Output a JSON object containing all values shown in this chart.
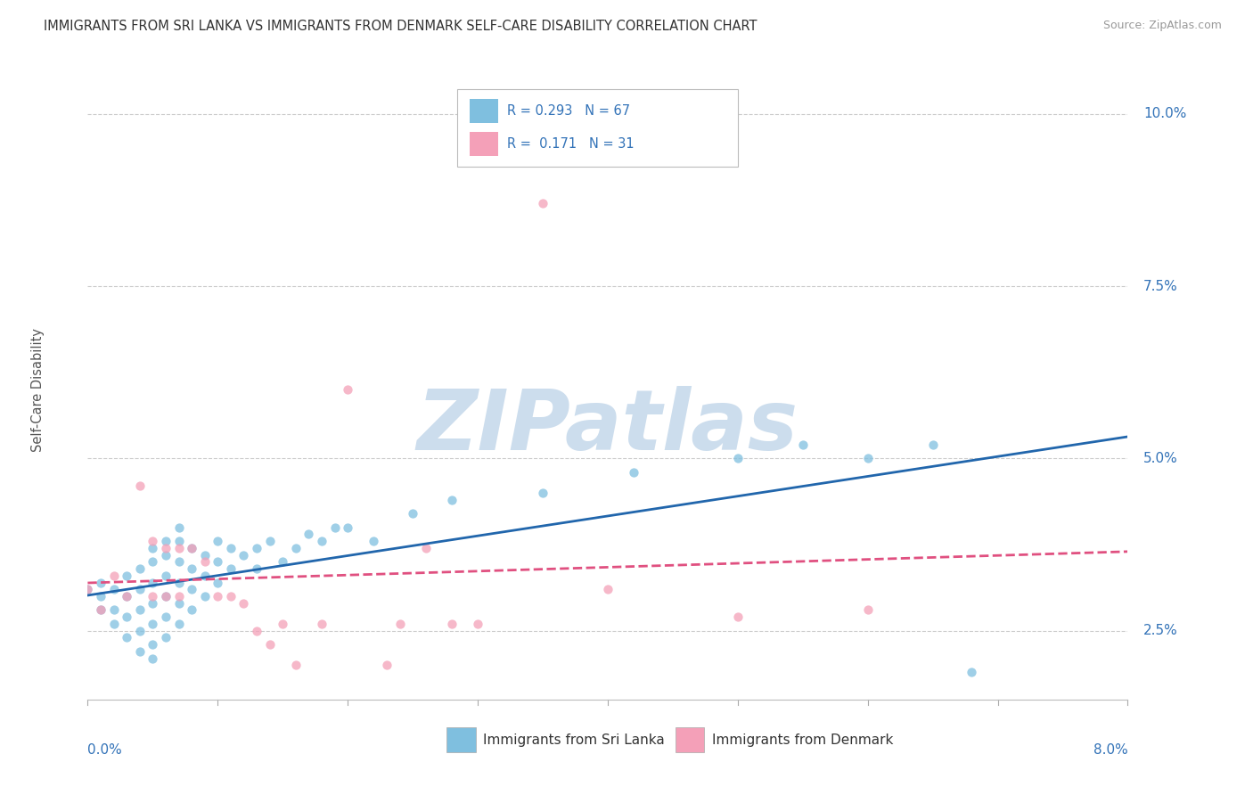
{
  "title": "IMMIGRANTS FROM SRI LANKA VS IMMIGRANTS FROM DENMARK SELF-CARE DISABILITY CORRELATION CHART",
  "source": "Source: ZipAtlas.com",
  "ylabel": "Self-Care Disability",
  "legend_sri_lanka": "Immigrants from Sri Lanka",
  "legend_denmark": "Immigrants from Denmark",
  "R_sri_lanka": 0.293,
  "N_sri_lanka": 67,
  "R_denmark": 0.171,
  "N_denmark": 31,
  "color_sri_lanka": "#7fbfdf",
  "color_denmark": "#f4a0b8",
  "color_text_blue": "#3373b8",
  "watermark": "ZIPatlas",
  "watermark_color": "#ccdded",
  "xmin": 0.0,
  "xmax": 0.08,
  "ymin": 0.015,
  "ymax": 0.105,
  "yticks": [
    0.025,
    0.05,
    0.075,
    0.1
  ],
  "ytick_labels": [
    "2.5%",
    "5.0%",
    "7.5%",
    "10.0%"
  ],
  "sri_lanka_x": [
    0.0,
    0.001,
    0.001,
    0.001,
    0.002,
    0.002,
    0.002,
    0.003,
    0.003,
    0.003,
    0.003,
    0.004,
    0.004,
    0.004,
    0.004,
    0.004,
    0.005,
    0.005,
    0.005,
    0.005,
    0.005,
    0.005,
    0.005,
    0.006,
    0.006,
    0.006,
    0.006,
    0.006,
    0.006,
    0.007,
    0.007,
    0.007,
    0.007,
    0.007,
    0.007,
    0.008,
    0.008,
    0.008,
    0.008,
    0.009,
    0.009,
    0.009,
    0.01,
    0.01,
    0.01,
    0.011,
    0.011,
    0.012,
    0.013,
    0.013,
    0.014,
    0.015,
    0.016,
    0.017,
    0.018,
    0.019,
    0.02,
    0.022,
    0.025,
    0.028,
    0.035,
    0.042,
    0.05,
    0.055,
    0.06,
    0.065,
    0.068
  ],
  "sri_lanka_y": [
    0.031,
    0.028,
    0.03,
    0.032,
    0.026,
    0.028,
    0.031,
    0.024,
    0.027,
    0.03,
    0.033,
    0.022,
    0.025,
    0.028,
    0.031,
    0.034,
    0.021,
    0.023,
    0.026,
    0.029,
    0.032,
    0.035,
    0.037,
    0.024,
    0.027,
    0.03,
    0.033,
    0.036,
    0.038,
    0.026,
    0.029,
    0.032,
    0.035,
    0.038,
    0.04,
    0.028,
    0.031,
    0.034,
    0.037,
    0.03,
    0.033,
    0.036,
    0.032,
    0.035,
    0.038,
    0.034,
    0.037,
    0.036,
    0.034,
    0.037,
    0.038,
    0.035,
    0.037,
    0.039,
    0.038,
    0.04,
    0.04,
    0.038,
    0.042,
    0.044,
    0.045,
    0.048,
    0.05,
    0.052,
    0.05,
    0.052,
    0.019
  ],
  "denmark_x": [
    0.0,
    0.001,
    0.002,
    0.003,
    0.004,
    0.005,
    0.005,
    0.006,
    0.006,
    0.007,
    0.007,
    0.008,
    0.009,
    0.01,
    0.011,
    0.012,
    0.013,
    0.014,
    0.015,
    0.016,
    0.018,
    0.02,
    0.023,
    0.024,
    0.026,
    0.028,
    0.03,
    0.035,
    0.04,
    0.05,
    0.06
  ],
  "denmark_y": [
    0.031,
    0.028,
    0.033,
    0.03,
    0.046,
    0.038,
    0.03,
    0.03,
    0.037,
    0.03,
    0.037,
    0.037,
    0.035,
    0.03,
    0.03,
    0.029,
    0.025,
    0.023,
    0.026,
    0.02,
    0.026,
    0.06,
    0.02,
    0.026,
    0.037,
    0.026,
    0.026,
    0.087,
    0.031,
    0.027,
    0.028
  ]
}
